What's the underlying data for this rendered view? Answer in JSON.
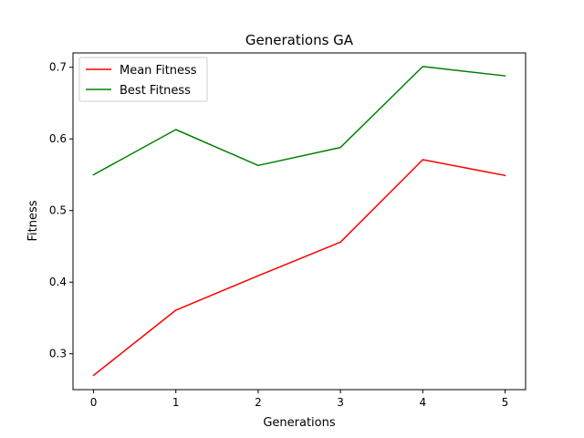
{
  "chart_data": {
    "type": "line",
    "title": "Generations GA",
    "xlabel": "Generations",
    "ylabel": "Fitness",
    "x": [
      0,
      1,
      2,
      3,
      4,
      5
    ],
    "x_ticks": [
      "0",
      "1",
      "2",
      "3",
      "4",
      "5"
    ],
    "y_ticks": [
      "0.3",
      "0.4",
      "0.5",
      "0.6",
      "0.7"
    ],
    "xlim": [
      -0.25,
      5.25
    ],
    "ylim": [
      0.25,
      0.72
    ],
    "grid": false,
    "legend_position": "top-left",
    "series": [
      {
        "name": "Mean Fitness",
        "color": "#ff0000",
        "values": [
          0.27,
          0.361,
          0.409,
          0.456,
          0.571,
          0.549
        ]
      },
      {
        "name": "Best Fitness",
        "color": "#008000",
        "values": [
          0.55,
          0.613,
          0.563,
          0.588,
          0.701,
          0.688
        ]
      }
    ]
  }
}
